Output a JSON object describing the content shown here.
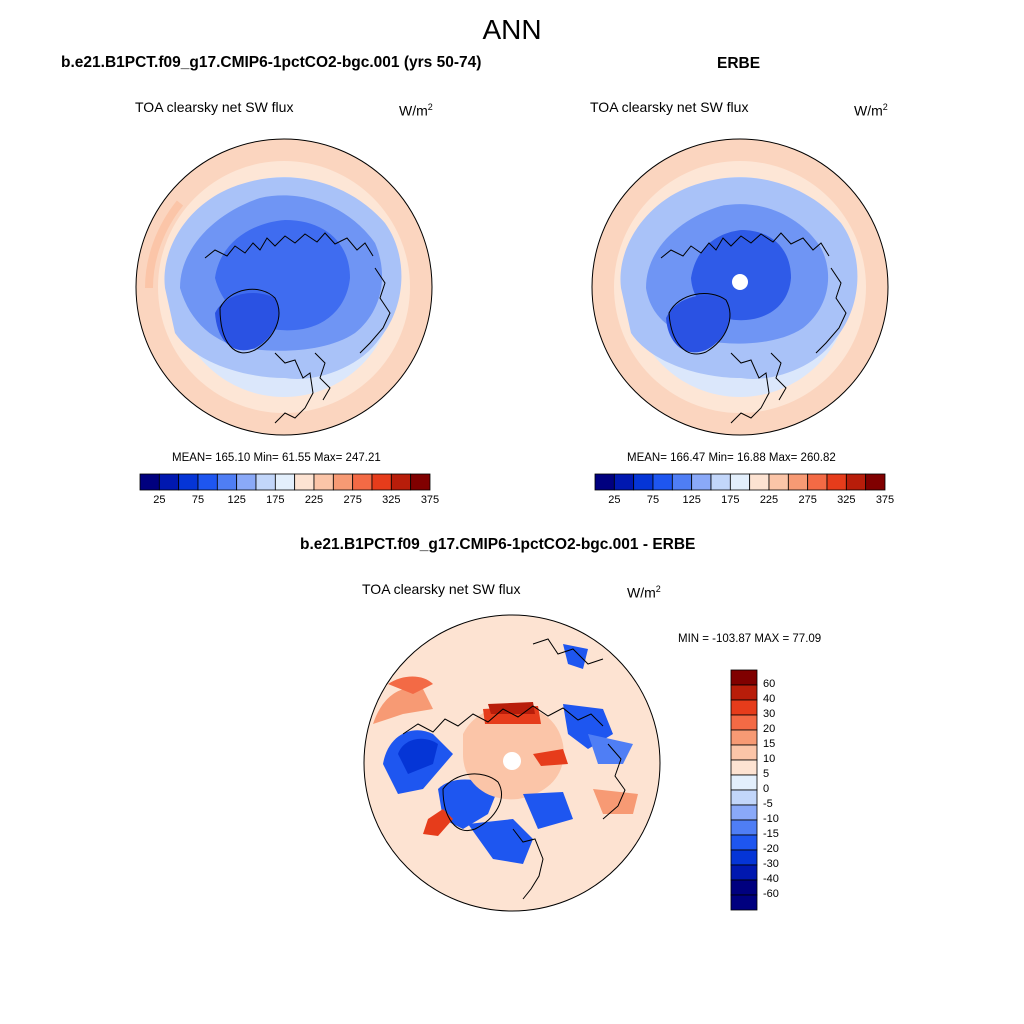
{
  "figure": {
    "title": "ANN",
    "colors": {
      "absolute_scale": [
        "#00007f",
        "#0018b0",
        "#0535d6",
        "#1e56f0",
        "#4f7ef5",
        "#8aa9f8",
        "#c2d6fa",
        "#e3effc",
        "#fde3d2",
        "#fbc5a8",
        "#f79a74",
        "#f36a45",
        "#e63c1b",
        "#b81d0a",
        "#800000"
      ],
      "difference_scale": [
        "#00007f",
        "#0018b0",
        "#0535d6",
        "#1e56f0",
        "#4f7ef5",
        "#8aa9f8",
        "#c2d6fa",
        "#e3effc",
        "#fde3d2",
        "#fbc5a8",
        "#f79a74",
        "#f36a45",
        "#e63c1b",
        "#b81d0a",
        "#800000"
      ],
      "land_outline": "#000000"
    },
    "panels": {
      "model": {
        "title": "b.e21.B1PCT.f09_g17.CMIP6-1pctCO2-bgc.001 (yrs 50-74)",
        "field": "TOA clearsky net SW flux",
        "units_base": "W/m",
        "units_exp": "2",
        "stats": "MEAN= 165.10  Min=  61.55  Max= 247.21",
        "colorbar_labels": [
          "25",
          "75",
          "125",
          "175",
          "225",
          "275",
          "325",
          "375"
        ]
      },
      "obs": {
        "title": "ERBE",
        "field": "TOA clearsky net SW flux",
        "units_base": "W/m",
        "units_exp": "2",
        "stats": "MEAN= 166.47  Min=  16.88  Max= 260.82",
        "colorbar_labels": [
          "25",
          "75",
          "125",
          "175",
          "225",
          "275",
          "325",
          "375"
        ]
      },
      "diff": {
        "title": "b.e21.B1PCT.f09_g17.CMIP6-1pctCO2-bgc.001 - ERBE",
        "field": "TOA clearsky net SW flux",
        "units_base": "W/m",
        "units_exp": "2",
        "stats": "MIN = -103.87 MAX =  77.09",
        "colorbar_labels": [
          "60",
          "40",
          "30",
          "20",
          "15",
          "10",
          "5",
          "0",
          "-5",
          "-10",
          "-15",
          "-20",
          "-30",
          "-40",
          "-60"
        ]
      }
    }
  }
}
